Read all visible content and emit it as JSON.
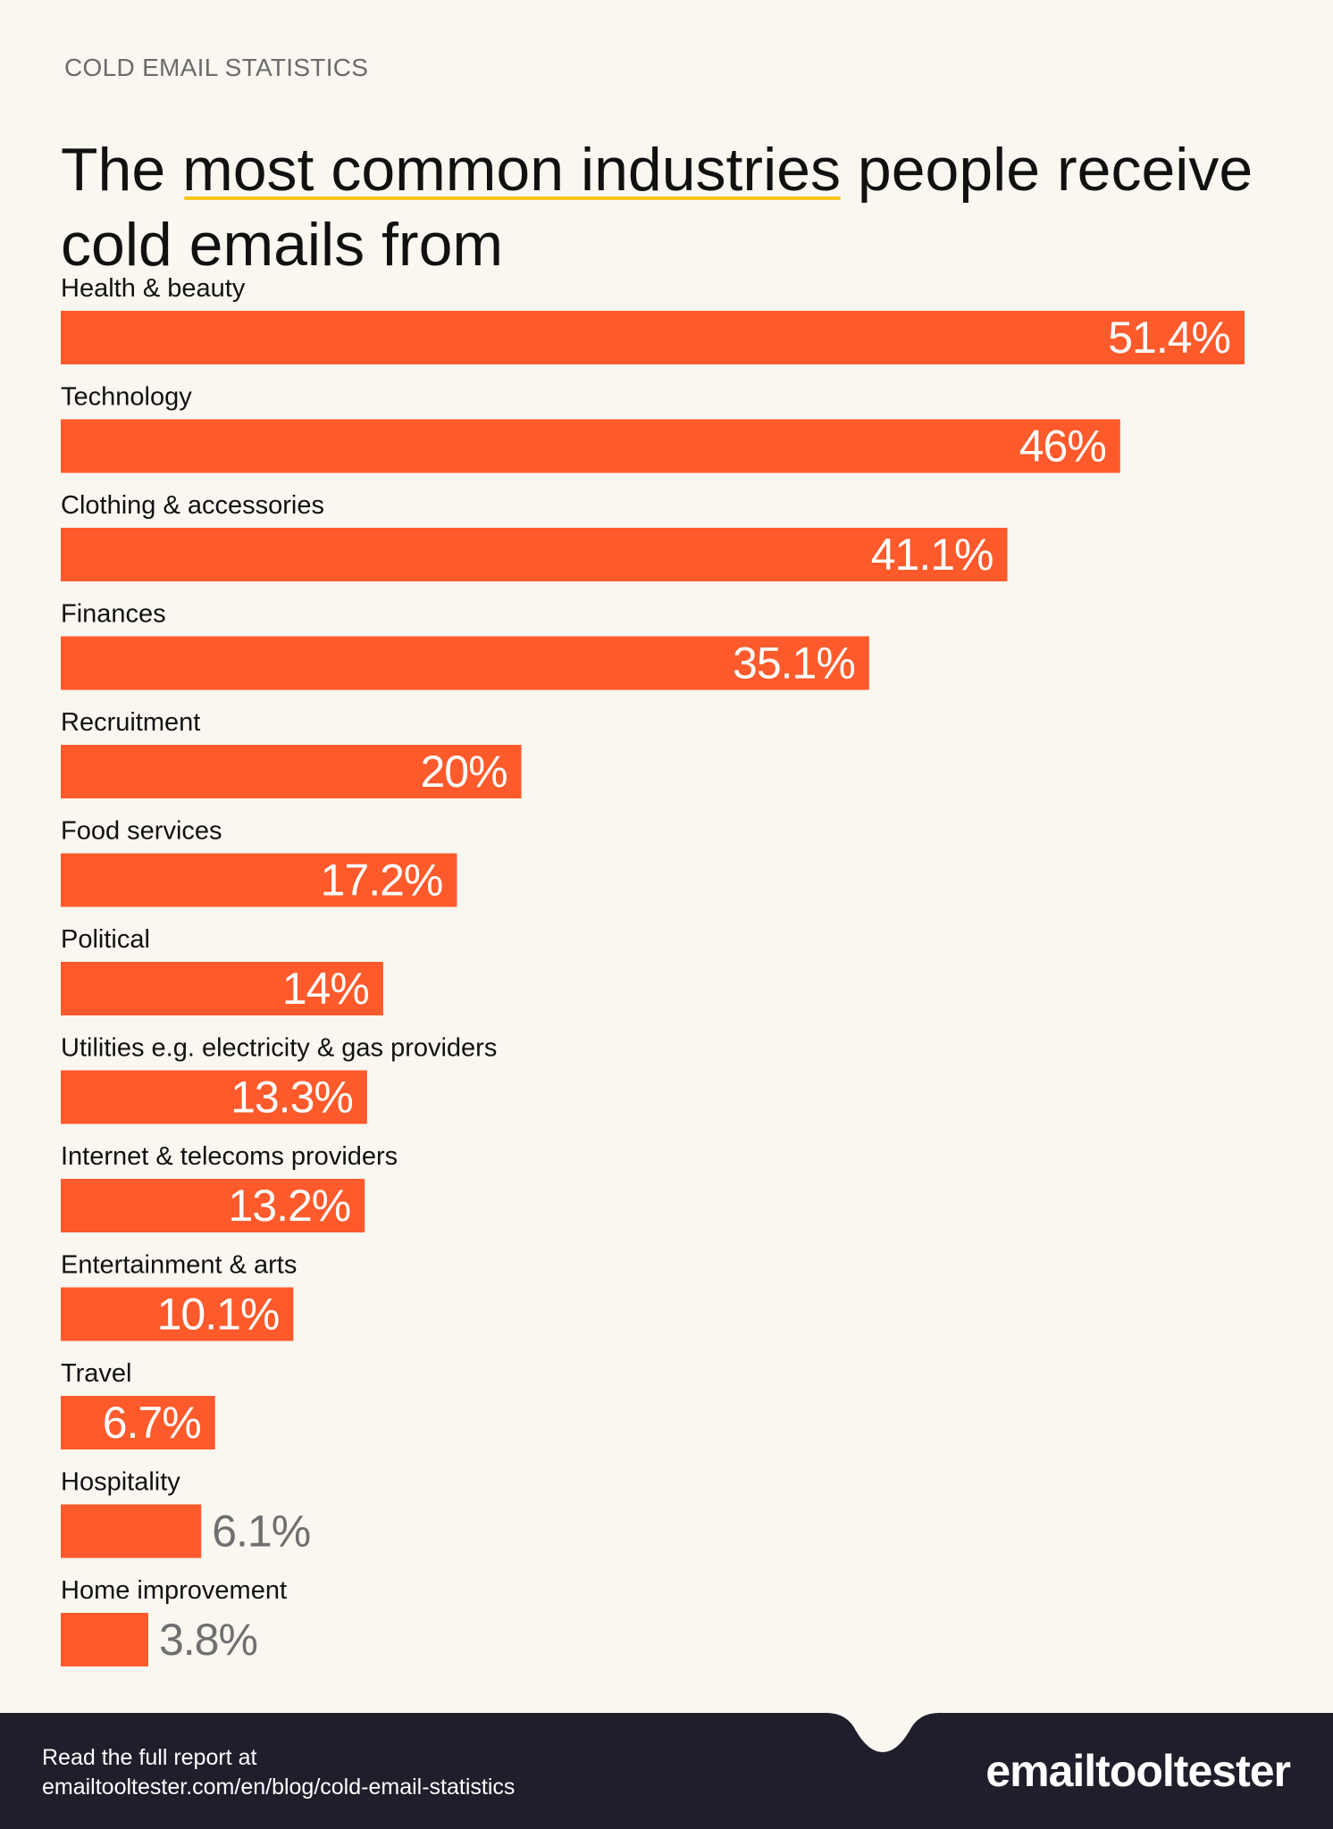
{
  "header": {
    "eyebrow": "COLD EMAIL STATISTICS",
    "title_pre": "The ",
    "title_highlight": "most common industries",
    "title_post": " people receive cold emails from"
  },
  "colors": {
    "bar": "#ff5a2b",
    "value_inside": "#ffffff",
    "value_outside": "#6f6f6f",
    "highlight_underline": "#f4c51b",
    "footer_bg": "#1e1f2b",
    "background": "#faf7f1"
  },
  "chart_data": {
    "type": "bar",
    "orientation": "horizontal",
    "title": "The most common industries people receive cold emails from",
    "categories": [
      "Health & beauty",
      "Technology",
      "Clothing & accessories",
      "Finances",
      "Recruitment",
      "Food services",
      "Political",
      "Utilities e.g. electricity & gas providers",
      "Internet & telecoms providers",
      "Entertainment & arts",
      "Travel",
      "Hospitality",
      "Home improvement"
    ],
    "values": [
      51.4,
      46,
      41.1,
      35.1,
      20,
      17.2,
      14,
      13.3,
      13.2,
      10.1,
      6.7,
      6.1,
      3.8
    ],
    "value_labels": [
      "51.4%",
      "46%",
      "41.1%",
      "35.1%",
      "20%",
      "17.2%",
      "14%",
      "13.3%",
      "13.2%",
      "10.1%",
      "6.7%",
      "6.1%",
      "3.8%"
    ],
    "unit": "%",
    "xlim": [
      0,
      51.4
    ],
    "xlabel": "",
    "ylabel": "",
    "grid": false,
    "legend": "none"
  },
  "footer": {
    "line1": "Read the full report at",
    "line2": "emailtooltester.com/en/blog/cold-email-statistics",
    "brand": "emailtooltester"
  }
}
